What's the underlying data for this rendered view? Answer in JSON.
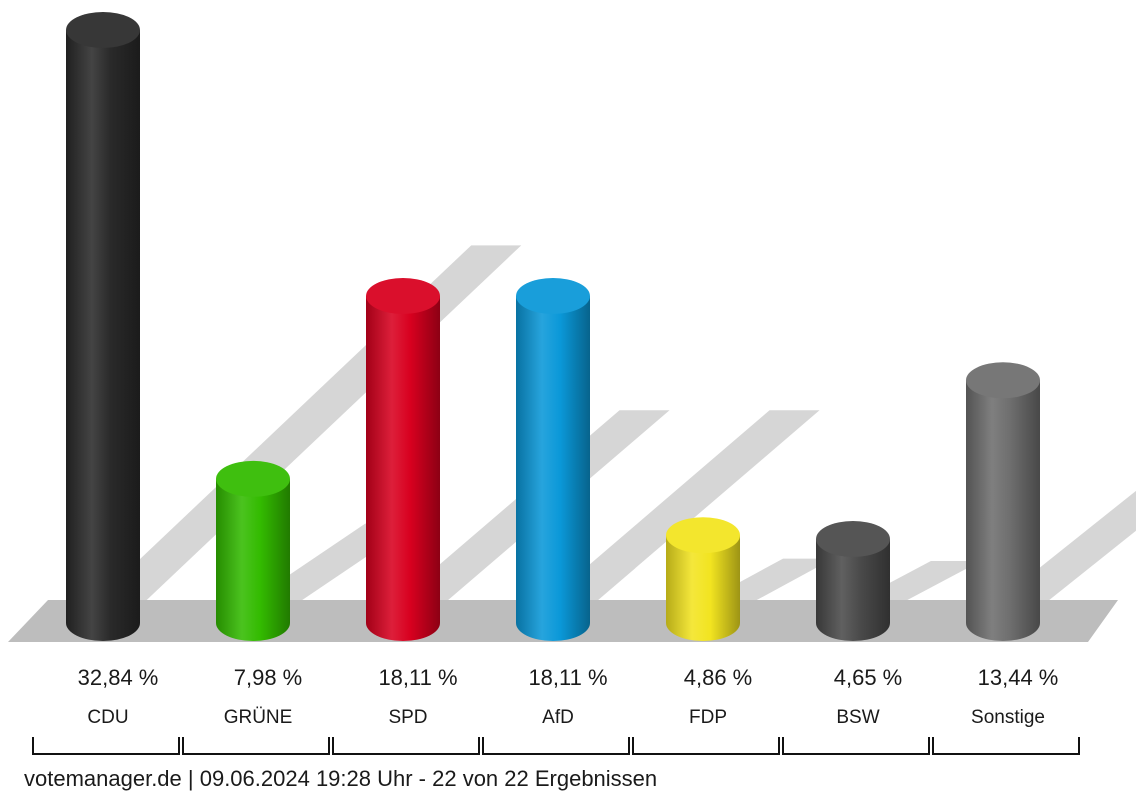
{
  "chart_data": {
    "type": "bar",
    "categories": [
      "CDU",
      "GRÜNE",
      "SPD",
      "AfD",
      "FDP",
      "BSW",
      "Sonstige"
    ],
    "values": [
      32.84,
      7.98,
      18.11,
      18.11,
      4.86,
      4.65,
      13.44
    ],
    "value_labels": [
      "32,84 %",
      "7,98 %",
      "18,11 %",
      "18,11 %",
      "4,86 %",
      "4,65 %",
      "13,44 %"
    ],
    "colors": [
      "#2a2a2a",
      "#33bb00",
      "#d8001f",
      "#0a98d8",
      "#f2e420",
      "#4a4a4a",
      "#6e6e6e"
    ],
    "ylim": [
      0,
      32.84
    ],
    "grid": false,
    "legend": "none",
    "title": "",
    "xlabel": "",
    "ylabel": ""
  },
  "footer": {
    "text": "votemanager.de | 09.06.2024 19:28 Uhr - 22 von 22 Ergebnissen"
  }
}
